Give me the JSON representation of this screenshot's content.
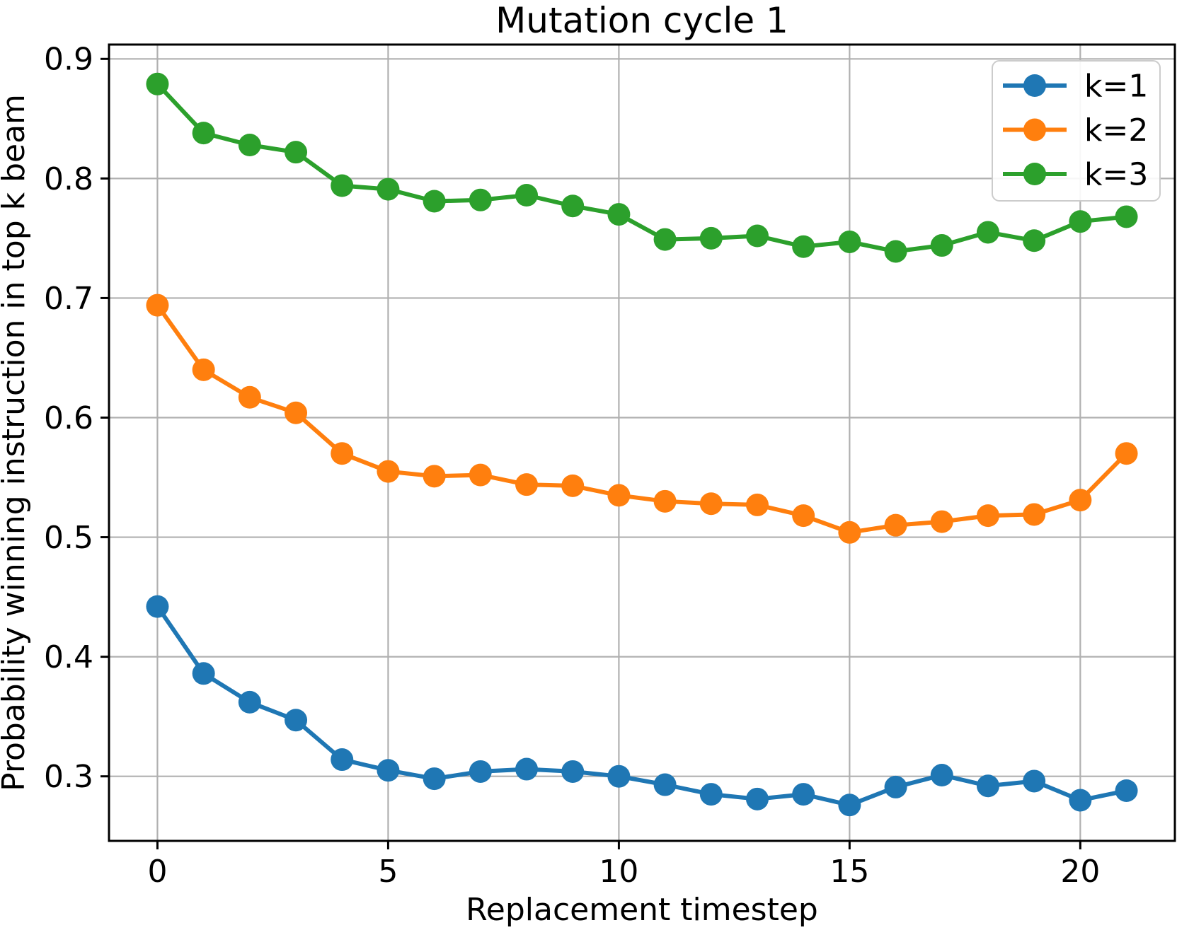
{
  "figure": {
    "background": "#ffffff"
  },
  "chart_data": {
    "type": "line",
    "title": "Mutation cycle 1",
    "xlabel": "Replacement timestep",
    "ylabel": "Probability winning instruction in top k beam",
    "x": [
      0,
      1,
      2,
      3,
      4,
      5,
      6,
      7,
      8,
      9,
      10,
      11,
      12,
      13,
      14,
      15,
      16,
      17,
      18,
      19,
      20,
      21
    ],
    "series": [
      {
        "name": "k=1",
        "color": "#1f77b4",
        "values": [
          0.442,
          0.386,
          0.362,
          0.347,
          0.314,
          0.305,
          0.298,
          0.304,
          0.306,
          0.304,
          0.3,
          0.293,
          0.285,
          0.281,
          0.285,
          0.276,
          0.291,
          0.301,
          0.292,
          0.296,
          0.28,
          0.288
        ]
      },
      {
        "name": "k=2",
        "color": "#ff7f0e",
        "values": [
          0.694,
          0.64,
          0.617,
          0.604,
          0.57,
          0.555,
          0.551,
          0.552,
          0.544,
          0.543,
          0.535,
          0.53,
          0.528,
          0.527,
          0.518,
          0.504,
          0.51,
          0.513,
          0.518,
          0.519,
          0.531,
          0.57
        ]
      },
      {
        "name": "k=3",
        "color": "#2ca02c",
        "values": [
          0.879,
          0.838,
          0.828,
          0.822,
          0.794,
          0.791,
          0.781,
          0.782,
          0.786,
          0.777,
          0.77,
          0.749,
          0.75,
          0.752,
          0.743,
          0.747,
          0.739,
          0.744,
          0.755,
          0.748,
          0.764,
          0.768
        ]
      }
    ],
    "xlim": [
      -1.05,
      22.05
    ],
    "ylim": [
      0.246,
      0.912
    ],
    "x_ticks": [
      0,
      5,
      10,
      15,
      20
    ],
    "y_ticks": [
      0.3,
      0.4,
      0.5,
      0.6,
      0.7,
      0.8,
      0.9
    ],
    "y_tick_decimals": 1,
    "grid": true,
    "grid_color": "#b0b0b0",
    "spine_color": "#000000",
    "legend_position": "upper right",
    "marker": "circle"
  }
}
